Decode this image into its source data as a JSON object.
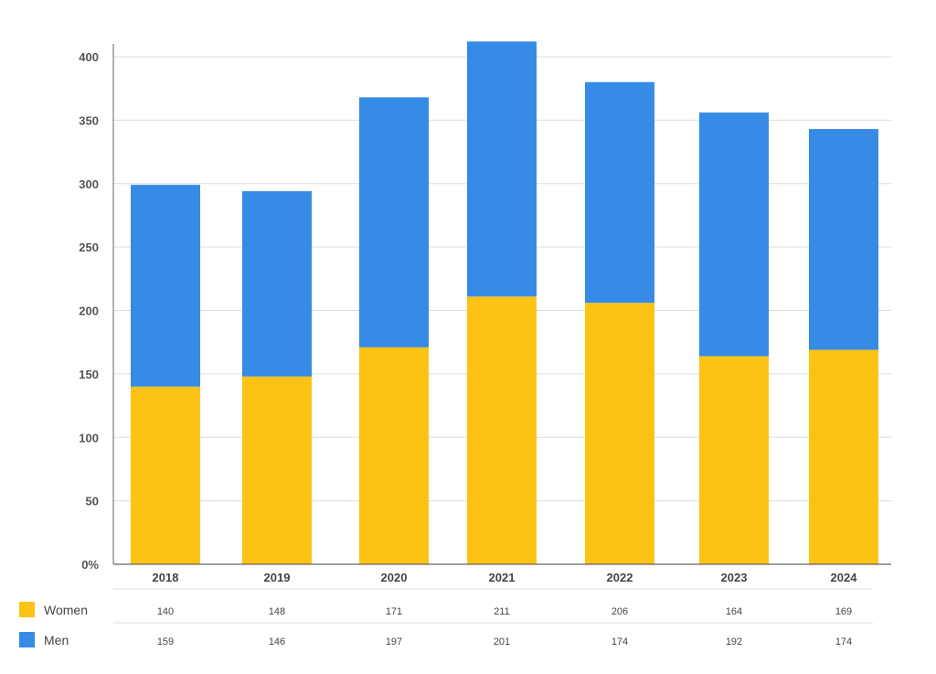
{
  "chart_data": {
    "type": "bar",
    "stacked": true,
    "categories": [
      "2018",
      "2019",
      "2020",
      "2021",
      "2022",
      "2023",
      "2024"
    ],
    "series": [
      {
        "name": "Women",
        "color": "#FCC314",
        "values": [
          140,
          148,
          171,
          211,
          206,
          164,
          169
        ]
      },
      {
        "name": "Men",
        "color": "#368BE7",
        "values": [
          159,
          146,
          197,
          201,
          174,
          192,
          174
        ]
      }
    ],
    "y_ticks": [
      "0%",
      "50",
      "100",
      "150",
      "200",
      "250",
      "300",
      "350",
      "400"
    ],
    "ylim": [
      0,
      400
    ],
    "grid": true,
    "legend_position": "bottom-left data table",
    "title": "",
    "xlabel": "",
    "ylabel": ""
  }
}
